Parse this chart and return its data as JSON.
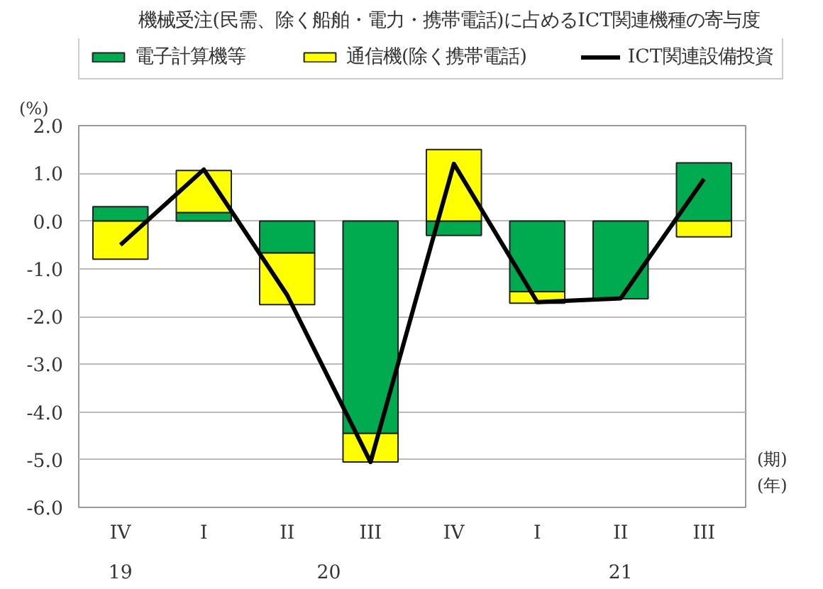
{
  "chart_data": {
    "type": "bar",
    "title": "機械受注(民需、除く船舶・電力・携帯電話)に占めるICT関連機種の寄与度",
    "ylabel": "(%)",
    "xlabel": "(期)",
    "categories": [
      "IV",
      "I",
      "II",
      "III",
      "IV",
      "I",
      "II",
      "III"
    ],
    "stacked": true,
    "series": [
      {
        "name": "電子計算機等",
        "color": "#00aa4f",
        "values": [
          0.3,
          0.18,
          -0.67,
          -4.45,
          -0.3,
          -1.48,
          -1.63,
          1.22
        ]
      },
      {
        "name": "通信機(除く携帯電話)",
        "color": "#ffff00",
        "values": [
          -0.8,
          0.88,
          -1.08,
          -0.6,
          1.5,
          -0.24,
          null,
          -0.33
        ]
      },
      {
        "name": "ICT関連設備投資",
        "type": "line",
        "color": "#000000",
        "values": [
          -0.5,
          1.08,
          -1.55,
          -5.05,
          1.2,
          -1.7,
          -1.62,
          0.88
        ]
      }
    ],
    "ylim": [
      -6,
      2
    ],
    "yticks": [
      {
        "value": -6,
        "label": "-6.0"
      },
      {
        "value": -5,
        "label": "-5.0"
      },
      {
        "value": -4,
        "label": "-4.0"
      },
      {
        "value": -3,
        "label": "-3.0"
      },
      {
        "value": -2,
        "label": "-2.0"
      },
      {
        "value": -1,
        "label": "-1.0"
      },
      {
        "value": 0,
        "label": "0.0"
      },
      {
        "value": 1,
        "label": "1.0"
      },
      {
        "value": 2,
        "label": "2.0"
      }
    ],
    "grid": "y",
    "legend": "top",
    "annotations": [
      "19",
      "20",
      "21",
      "(年)"
    ]
  }
}
